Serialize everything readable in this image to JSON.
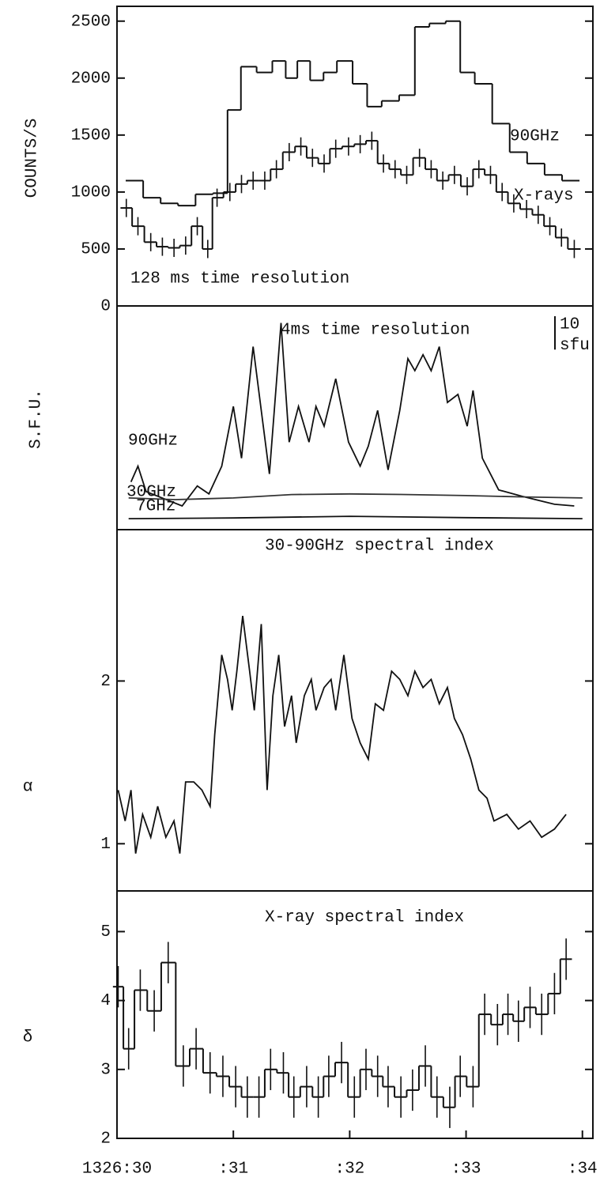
{
  "chart_data": [
    {
      "type": "step",
      "ylabel": "COUNTS/S",
      "annotation": "128 ms time resolution",
      "xlim": [
        30,
        34.09
      ],
      "ylim": [
        0,
        2630
      ],
      "yticks": [
        0,
        500,
        1000,
        1500,
        2000,
        {
          "value": 2500,
          "label": "2500"
        }
      ],
      "series": [
        {
          "name": "90GHz",
          "color": "#111",
          "x": [
            30.15,
            30.3,
            30.45,
            30.6,
            30.75,
            30.9,
            31.0,
            31.13,
            31.27,
            31.4,
            31.5,
            31.6,
            31.72,
            31.83,
            31.95,
            32.1,
            32.2,
            32.35,
            32.5,
            32.62,
            32.75,
            32.9,
            33.0,
            33.15,
            33.3,
            33.45,
            33.6,
            33.75,
            33.9
          ],
          "values": [
            1100,
            950,
            900,
            880,
            980,
            990,
            1720,
            2100,
            2050,
            2150,
            2000,
            2150,
            1980,
            2050,
            2150,
            1950,
            1750,
            1800,
            1850,
            2450,
            2480,
            2500,
            2050,
            1950,
            1600,
            1350,
            1250,
            1150,
            1100
          ]
        },
        {
          "name": "X-rays",
          "color": "#111",
          "error": 80,
          "x": [
            30.08,
            30.18,
            30.29,
            30.39,
            30.49,
            30.59,
            30.69,
            30.78,
            30.86,
            30.97,
            31.07,
            31.17,
            31.27,
            31.37,
            31.48,
            31.58,
            31.68,
            31.78,
            31.88,
            31.99,
            32.09,
            32.19,
            32.29,
            32.39,
            32.49,
            32.6,
            32.7,
            32.8,
            32.9,
            33.01,
            33.11,
            33.21,
            33.31,
            33.41,
            33.52,
            33.62,
            33.72,
            33.82,
            33.93
          ],
          "values": [
            860,
            700,
            560,
            520,
            510,
            530,
            700,
            500,
            950,
            1000,
            1070,
            1100,
            1100,
            1200,
            1350,
            1400,
            1300,
            1250,
            1380,
            1400,
            1420,
            1450,
            1250,
            1200,
            1150,
            1300,
            1200,
            1100,
            1150,
            1050,
            1200,
            1150,
            1000,
            900,
            850,
            800,
            700,
            600,
            500
          ]
        }
      ]
    },
    {
      "type": "line",
      "ylabel": "S.F.U.",
      "annotation": "4ms time resolution",
      "xlim": [
        30,
        34.09
      ],
      "ylim": [
        0,
        67
      ],
      "scale_bar": {
        "value": 10,
        "unit": "sfu"
      },
      "series": [
        {
          "name": "90GHz",
          "color": "#111",
          "x": [
            30.12,
            30.18,
            30.25,
            30.56,
            30.69,
            30.79,
            30.9,
            31.0,
            31.07,
            31.17,
            31.24,
            31.31,
            31.41,
            31.48,
            31.56,
            31.65,
            31.71,
            31.78,
            31.88,
            31.99,
            32.09,
            32.16,
            32.24,
            32.33,
            32.43,
            32.5,
            32.56,
            32.63,
            32.7,
            32.77,
            32.84,
            32.93,
            33.01,
            33.06,
            33.14,
            33.28,
            33.48,
            33.76,
            33.93
          ],
          "values": [
            14.3,
            19.0,
            11.4,
            7.1,
            13.1,
            10.7,
            19.0,
            36.9,
            21.4,
            54.8,
            35.7,
            16.7,
            61.9,
            26.2,
            36.9,
            26.2,
            36.9,
            31.0,
            45.2,
            26.2,
            19.0,
            25.0,
            35.7,
            17.9,
            35.7,
            51.2,
            47.6,
            52.4,
            47.6,
            54.8,
            38.1,
            40.5,
            31.0,
            41.7,
            21.4,
            11.9,
            10.0,
            7.6,
            7.1
          ]
        },
        {
          "name": "30GHz",
          "color": "#333",
          "x": [
            30.1,
            30.5,
            31.0,
            31.5,
            32.0,
            32.5,
            33.0,
            33.5,
            34.0
          ],
          "values": [
            9.5,
            9.0,
            9.5,
            10.5,
            10.7,
            10.5,
            10.2,
            9.8,
            9.5
          ]
        },
        {
          "name": "7GHz",
          "color": "#111",
          "x": [
            30.1,
            31.0,
            32.0,
            33.0,
            34.0
          ],
          "values": [
            3.3,
            3.5,
            4.0,
            3.6,
            3.3
          ]
        }
      ]
    },
    {
      "type": "line",
      "ylabel": "α",
      "annotation": "30-90GHz spectral index",
      "xlim": [
        30,
        34.09
      ],
      "ylim": [
        0.71,
        2.93
      ],
      "yticks": [
        1,
        2
      ],
      "series": [
        {
          "name": "α",
          "color": "#111",
          "x": [
            30.01,
            30.07,
            30.12,
            30.16,
            30.22,
            30.29,
            30.35,
            30.42,
            30.49,
            30.54,
            30.59,
            30.66,
            30.73,
            30.8,
            30.84,
            30.9,
            30.95,
            30.99,
            31.03,
            31.08,
            31.14,
            31.18,
            31.24,
            31.29,
            31.34,
            31.39,
            31.44,
            31.5,
            31.54,
            31.61,
            31.67,
            31.71,
            31.78,
            31.84,
            31.88,
            31.95,
            32.02,
            32.09,
            32.16,
            32.22,
            32.29,
            32.36,
            32.43,
            32.5,
            32.56,
            32.63,
            32.7,
            32.77,
            32.84,
            32.9,
            32.97,
            33.04,
            33.11,
            33.18,
            33.24,
            33.35,
            33.45,
            33.55,
            33.65,
            33.76,
            33.86
          ],
          "values": [
            1.33,
            1.14,
            1.33,
            0.94,
            1.18,
            1.04,
            1.23,
            1.04,
            1.14,
            0.94,
            1.38,
            1.38,
            1.33,
            1.23,
            1.67,
            2.16,
            2.01,
            1.82,
            2.06,
            2.4,
            2.06,
            1.82,
            2.35,
            1.33,
            1.91,
            2.16,
            1.72,
            1.91,
            1.62,
            1.91,
            2.01,
            1.82,
            1.96,
            2.01,
            1.82,
            2.16,
            1.77,
            1.62,
            1.52,
            1.86,
            1.82,
            2.06,
            2.01,
            1.91,
            2.06,
            1.96,
            2.01,
            1.86,
            1.96,
            1.77,
            1.67,
            1.52,
            1.33,
            1.28,
            1.14,
            1.18,
            1.09,
            1.14,
            1.04,
            1.09,
            1.18
          ]
        }
      ]
    },
    {
      "type": "step",
      "ylabel": "δ",
      "annotation": "X-ray spectral index",
      "xlim": [
        30,
        34.09
      ],
      "ylim": [
        2,
        5.59
      ],
      "yticks": [
        2,
        3,
        4,
        5
      ],
      "xticks": [
        {
          "value": 30,
          "label": "1326:30"
        },
        {
          "value": 31,
          "label": ":31"
        },
        {
          "value": 32,
          "label": ":32"
        },
        {
          "value": 33,
          "label": ":33"
        },
        {
          "value": 34,
          "label": ":34"
        }
      ],
      "series": [
        {
          "name": "δ",
          "color": "#111",
          "error": 0.3,
          "x": [
            30.01,
            30.1,
            30.2,
            30.32,
            30.44,
            30.57,
            30.68,
            30.8,
            30.91,
            31.02,
            31.12,
            31.22,
            31.32,
            31.43,
            31.52,
            31.63,
            31.73,
            31.82,
            31.93,
            32.04,
            32.14,
            32.24,
            32.33,
            32.44,
            32.54,
            32.65,
            32.75,
            32.86,
            32.95,
            33.06,
            33.16,
            33.27,
            33.36,
            33.45,
            33.55,
            33.65,
            33.76,
            33.86
          ],
          "values": [
            4.2,
            3.3,
            4.15,
            3.85,
            4.55,
            3.05,
            3.3,
            2.95,
            2.9,
            2.75,
            2.6,
            2.6,
            3.0,
            2.95,
            2.6,
            2.75,
            2.6,
            2.9,
            3.1,
            2.6,
            3.0,
            2.9,
            2.75,
            2.6,
            2.7,
            3.05,
            2.6,
            2.45,
            2.9,
            2.75,
            3.8,
            3.65,
            3.8,
            3.7,
            3.9,
            3.8,
            4.1,
            4.6
          ]
        }
      ]
    }
  ]
}
